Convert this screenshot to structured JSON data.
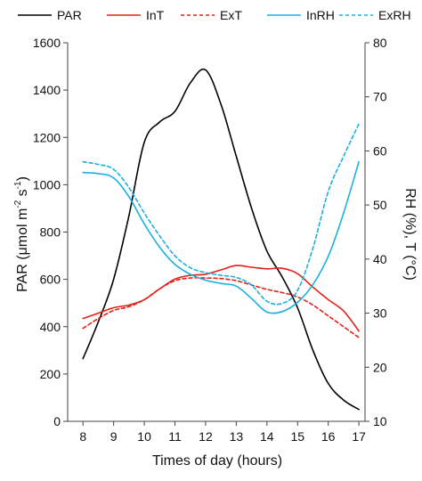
{
  "chart_data": {
    "type": "line",
    "x": [
      8,
      9,
      10,
      11,
      12,
      13,
      14,
      15,
      16,
      17
    ],
    "xlabel": "Times of day (hours)",
    "xlim": [
      7.5,
      17.2
    ],
    "ylabel_left": {
      "text": "PAR (μmol m",
      "sup1": "-2",
      "mid": " s",
      "sup2": "-1",
      "end": ")"
    },
    "ylabel_right": "RH (%), T (°C)",
    "ylim_left": [
      0,
      1600
    ],
    "ylim_right": [
      10,
      80
    ],
    "yticks_left": [
      0,
      200,
      400,
      600,
      800,
      1000,
      1200,
      1400,
      1600
    ],
    "yticks_right": [
      10,
      20,
      30,
      40,
      50,
      60,
      70,
      80
    ],
    "xticks": [
      8,
      9,
      10,
      11,
      12,
      13,
      14,
      15,
      16,
      17
    ],
    "grid": false,
    "legend_position": "top",
    "series": [
      {
        "name": "PAR",
        "axis": "left",
        "color": "#000000",
        "dash": "solid",
        "x": [
          8,
          8.5,
          9,
          9.5,
          10,
          10.5,
          11,
          11.5,
          12,
          12.5,
          13,
          13.5,
          14,
          14.5,
          15,
          15.5,
          16,
          16.5,
          17
        ],
        "values": [
          265,
          420,
          600,
          870,
          1180,
          1265,
          1310,
          1430,
          1485,
          1340,
          1120,
          900,
          720,
          610,
          480,
          300,
          160,
          90,
          50
        ]
      },
      {
        "name": "InT",
        "axis": "right",
        "color": "#e32119",
        "dash": "solid",
        "x": [
          8,
          8.5,
          9,
          9.5,
          10,
          10.5,
          11,
          11.5,
          12,
          12.5,
          13,
          13.5,
          14,
          14.5,
          15,
          15.5,
          16,
          16.5,
          17
        ],
        "values": [
          29,
          30,
          31,
          31.5,
          32.5,
          34.5,
          36.3,
          37,
          37.2,
          38,
          38.8,
          38.5,
          38.2,
          38.3,
          37.3,
          34.8,
          32.5,
          30.4,
          26.7
        ]
      },
      {
        "name": "ExT",
        "axis": "right",
        "color": "#e32119",
        "dash": "4,3",
        "x": [
          8,
          8.5,
          9,
          9.5,
          10,
          10.5,
          11,
          11.5,
          12,
          12.5,
          13,
          13.5,
          14,
          14.5,
          15,
          15.5,
          16,
          16.5,
          17
        ],
        "values": [
          27.2,
          29,
          30.5,
          31.2,
          32.5,
          34.5,
          36,
          36.5,
          36.5,
          36.4,
          36,
          35.2,
          34.4,
          33.8,
          33,
          31.5,
          29.5,
          27.5,
          25.5
        ]
      },
      {
        "name": "InRH",
        "axis": "right",
        "color": "#1ab0df",
        "dash": "solid",
        "x": [
          8,
          8.5,
          9,
          9.5,
          10,
          10.5,
          11,
          11.5,
          12,
          12.5,
          13,
          13.5,
          14,
          14.5,
          15,
          15.5,
          16,
          16.5,
          17
        ],
        "values": [
          56,
          55.8,
          55,
          51.5,
          46.5,
          42.2,
          39,
          37.2,
          36.1,
          35.5,
          35,
          32.7,
          30.2,
          30.3,
          32,
          35.3,
          40.5,
          48.5,
          58
        ]
      },
      {
        "name": "ExRH",
        "axis": "right",
        "color": "#1ab0df",
        "dash": "4,3",
        "x": [
          8,
          8.5,
          9,
          9.5,
          10,
          10.5,
          11,
          11.5,
          12,
          12.5,
          13,
          13.5,
          14,
          14.5,
          15,
          15.5,
          16,
          16.5,
          17
        ],
        "values": [
          58,
          57.5,
          56.6,
          53.2,
          48.5,
          44.3,
          40.6,
          38.4,
          37.5,
          37,
          36.6,
          35.2,
          32.2,
          31.8,
          34.2,
          42,
          52.5,
          59,
          65
        ]
      }
    ]
  }
}
